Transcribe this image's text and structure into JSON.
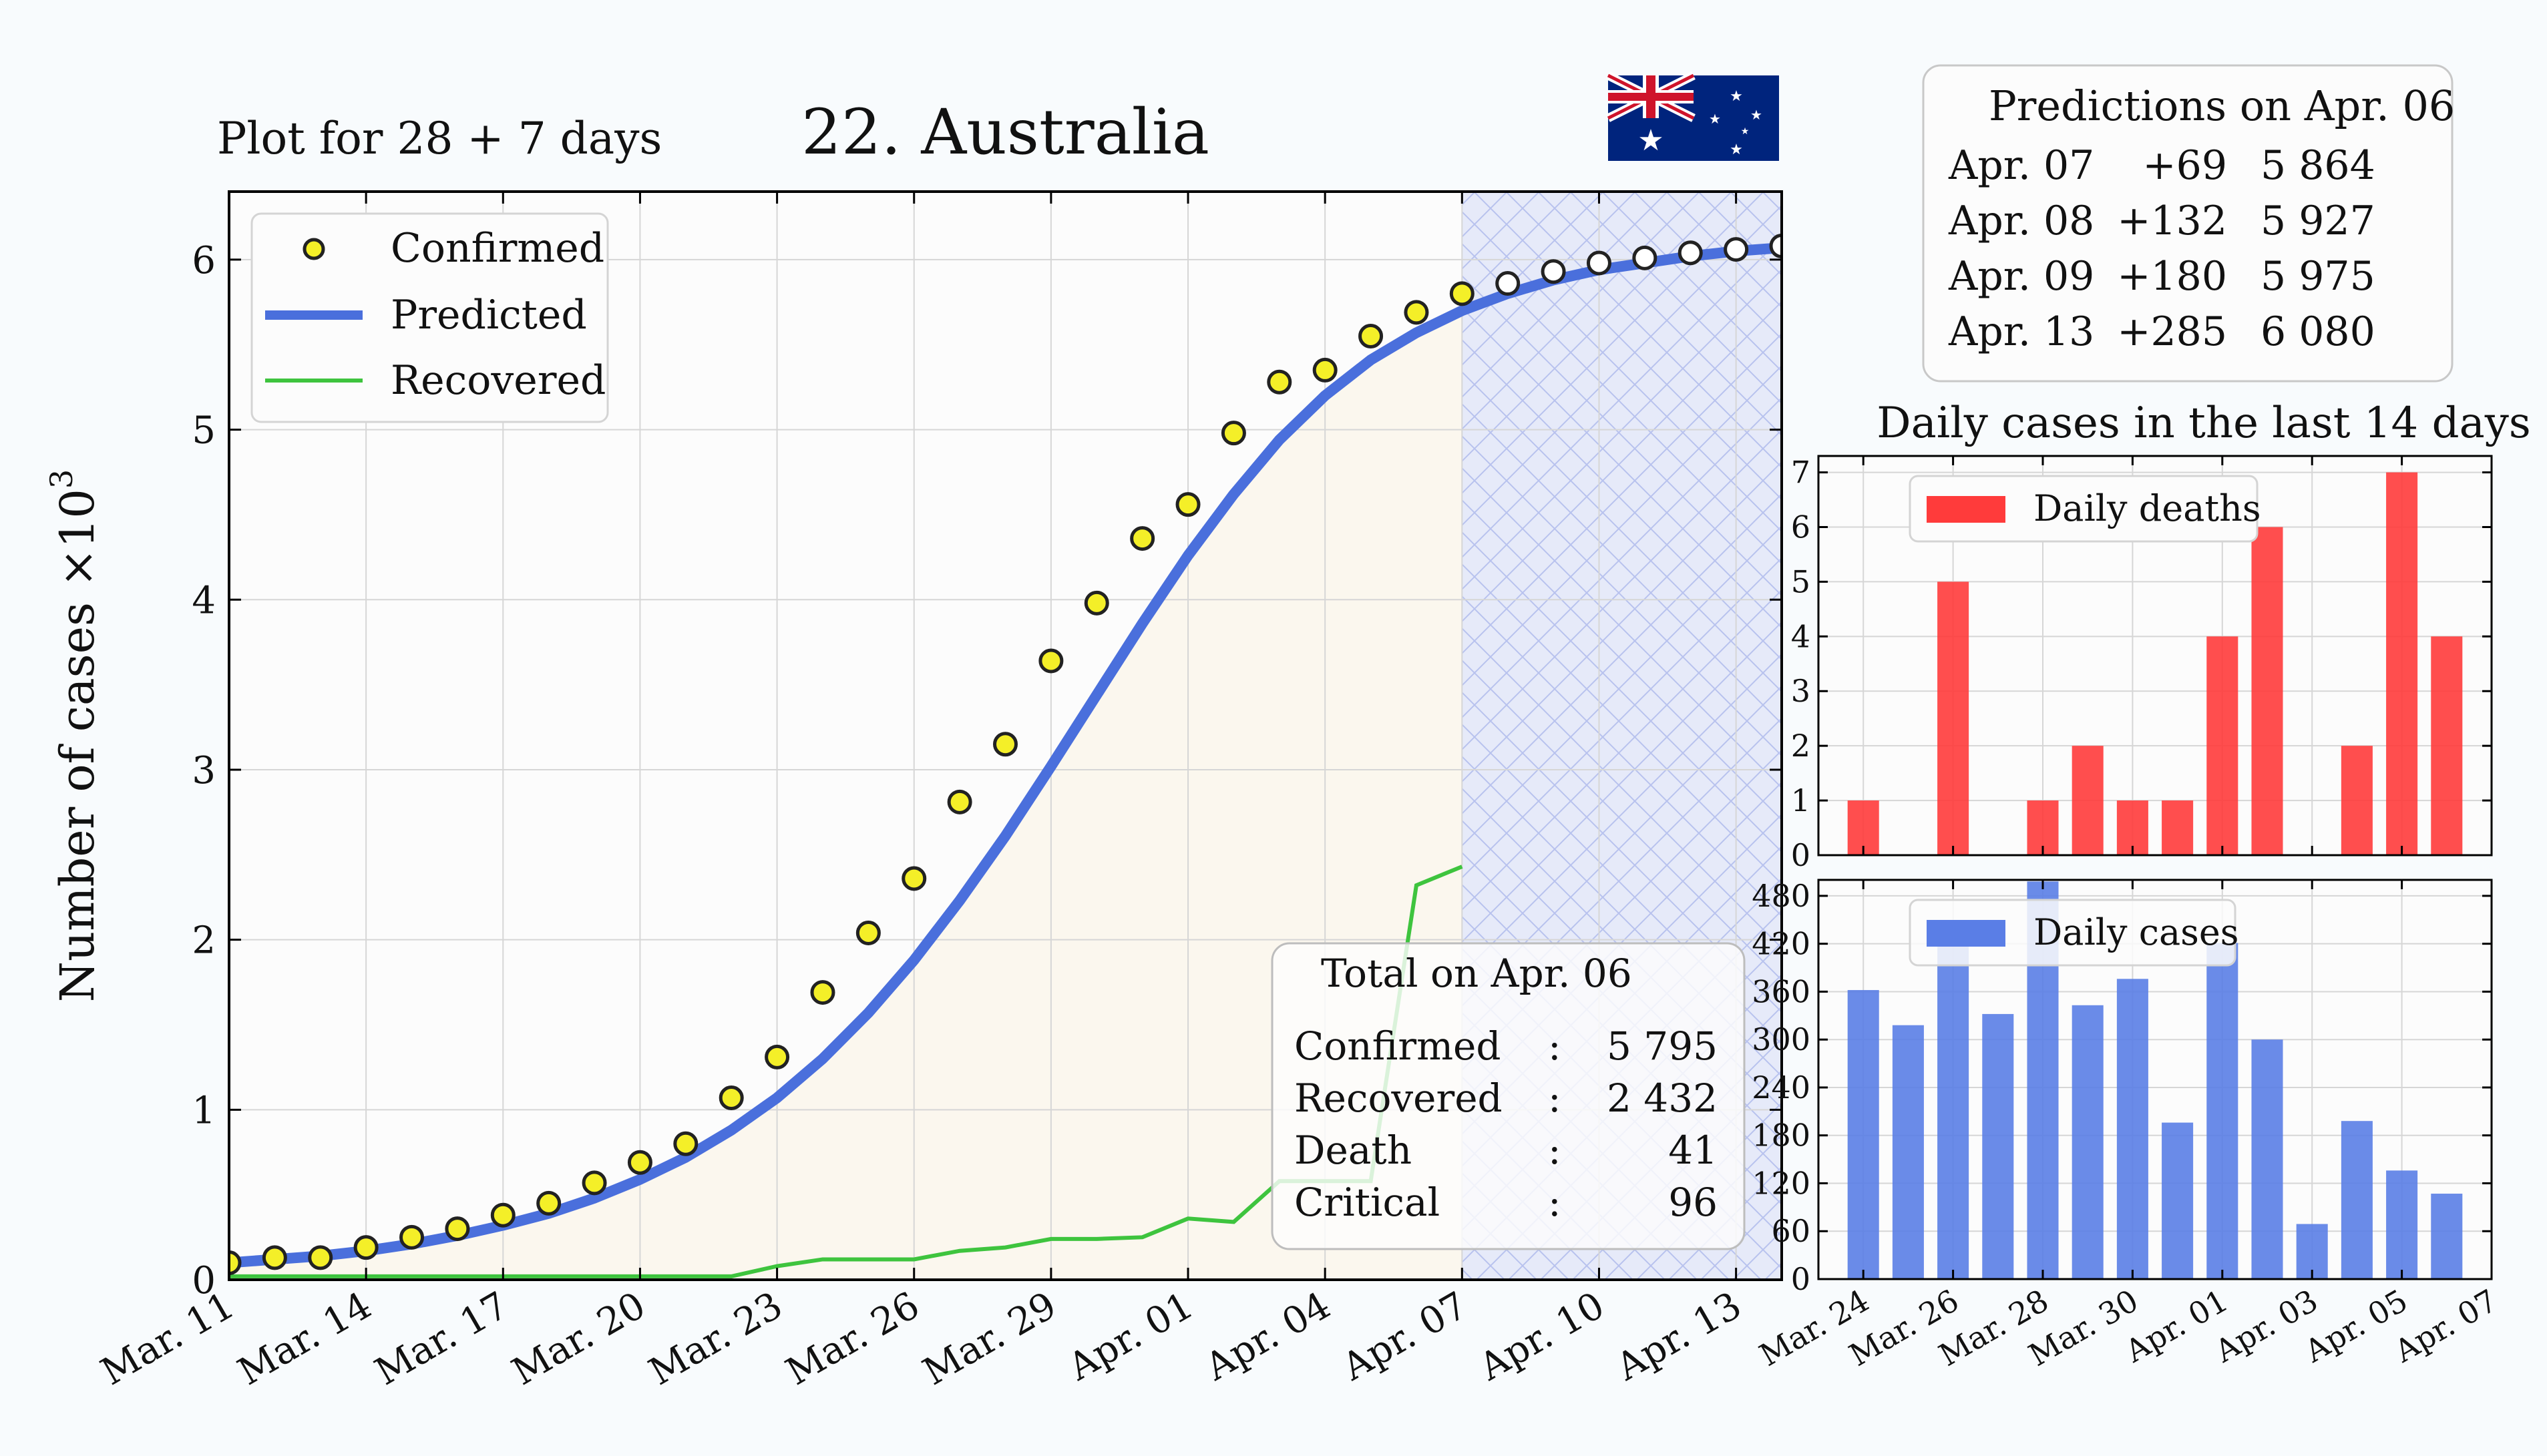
{
  "header": {
    "subtitle": "Plot for 28 + 7 days",
    "title": "22. Australia",
    "flag": "australia-flag"
  },
  "colors": {
    "confirmed_fill": "#f4ef28",
    "predicted": "#4a6fdc",
    "recovered": "#3ec43e",
    "deaths_bar": "#ff3b3b",
    "cases_bar": "#5a7ee6",
    "forecast_band": "#e6eaf9",
    "past_fill": "#fbf7ee"
  },
  "predictions": {
    "title": "Predictions on Apr. 06",
    "rows": [
      {
        "date": "Apr. 07",
        "delta": "+69",
        "total": "5 864"
      },
      {
        "date": "Apr. 08",
        "delta": "+132",
        "total": "5 927"
      },
      {
        "date": "Apr. 09",
        "delta": "+180",
        "total": "5 975"
      },
      {
        "date": "Apr. 13",
        "delta": "+285",
        "total": "6 080"
      }
    ]
  },
  "totals": {
    "title": "Total on Apr. 06",
    "rows": [
      {
        "label": "Confirmed",
        "sep": ":",
        "value": "5 795"
      },
      {
        "label": "Recovered",
        "sep": ":",
        "value": "2 432"
      },
      {
        "label": "Death",
        "sep": ":",
        "value": "41"
      },
      {
        "label": "Critical",
        "sep": ":",
        "value": "96"
      }
    ]
  },
  "chart_data": [
    {
      "type": "line",
      "ylabel": "Number of cases ×10³",
      "ylabel_main": "Number of cases ×10",
      "ylabel_sup": "3",
      "x_start": "Mar. 11",
      "ylim": [
        0,
        6.4
      ],
      "yticks": [
        "0",
        "1",
        "2",
        "3",
        "4",
        "5",
        "6"
      ],
      "xtick_labels": [
        "Mar. 11",
        "Mar. 14",
        "Mar. 17",
        "Mar. 20",
        "Mar. 23",
        "Mar. 26",
        "Mar. 29",
        "Apr. 01",
        "Apr. 04",
        "Apr. 07",
        "Apr. 10",
        "Apr. 13"
      ],
      "legend_position": "top-left",
      "forecast_start": "Apr. 06",
      "series": [
        {
          "name": "Confirmed",
          "kind": "markers",
          "values": [
            0.1,
            0.13,
            0.13,
            0.19,
            0.25,
            0.3,
            0.38,
            0.45,
            0.57,
            0.69,
            0.8,
            1.07,
            1.31,
            1.69,
            2.04,
            2.36,
            2.81,
            3.15,
            3.64,
            3.98,
            4.36,
            4.56,
            4.98,
            5.28,
            5.35,
            5.55,
            5.69,
            5.8
          ],
          "forecast_values": [
            5.86,
            5.93,
            5.98,
            6.01,
            6.04,
            6.06,
            6.08
          ]
        },
        {
          "name": "Predicted",
          "kind": "line",
          "values": [
            0.1,
            0.12,
            0.14,
            0.17,
            0.21,
            0.26,
            0.32,
            0.39,
            0.48,
            0.59,
            0.72,
            0.88,
            1.07,
            1.3,
            1.57,
            1.88,
            2.23,
            2.61,
            3.02,
            3.44,
            3.86,
            4.26,
            4.62,
            4.94,
            5.2,
            5.41,
            5.57,
            5.7,
            5.8,
            5.88,
            5.94,
            5.98,
            6.02,
            6.05,
            6.07,
            6.09
          ]
        },
        {
          "name": "Recovered",
          "kind": "line",
          "values": [
            0.02,
            0.02,
            0.02,
            0.02,
            0.02,
            0.02,
            0.02,
            0.02,
            0.02,
            0.02,
            0.02,
            0.02,
            0.08,
            0.12,
            0.12,
            0.12,
            0.17,
            0.19,
            0.24,
            0.24,
            0.25,
            0.36,
            0.34,
            0.58,
            0.58,
            0.58,
            2.32,
            2.43
          ]
        }
      ]
    },
    {
      "type": "bar",
      "title": "Daily cases in the last 14 days",
      "categories": [
        "Mar. 24",
        "Mar. 25",
        "Mar. 26",
        "Mar. 27",
        "Mar. 28",
        "Mar. 29",
        "Mar. 30",
        "Mar. 31",
        "Apr. 01",
        "Apr. 02",
        "Apr. 03",
        "Apr. 04",
        "Apr. 05",
        "Apr. 06"
      ],
      "xtick_labels": [
        "Mar. 24",
        "Mar. 26",
        "Mar. 28",
        "Mar. 30",
        "Apr. 01",
        "Apr. 03",
        "Apr. 05",
        "Apr. 07"
      ],
      "series": [
        {
          "name": "Daily deaths",
          "values": [
            1,
            0,
            5,
            0,
            1,
            2,
            1,
            1,
            4,
            6,
            0,
            2,
            7,
            4
          ]
        }
      ],
      "ylim": [
        0,
        7.3
      ],
      "yticks": [
        "0",
        "1",
        "2",
        "3",
        "4",
        "5",
        "6",
        "7"
      ],
      "legend_position": "top-left"
    },
    {
      "type": "bar",
      "categories": [
        "Mar. 24",
        "Mar. 25",
        "Mar. 26",
        "Mar. 27",
        "Mar. 28",
        "Mar. 29",
        "Mar. 30",
        "Mar. 31",
        "Apr. 01",
        "Apr. 02",
        "Apr. 03",
        "Apr. 04",
        "Apr. 05",
        "Apr. 06"
      ],
      "xtick_labels": [
        "Mar. 24",
        "Mar. 26",
        "Mar. 28",
        "Mar. 30",
        "Apr. 01",
        "Apr. 03",
        "Apr. 05",
        "Apr. 07"
      ],
      "series": [
        {
          "name": "Daily cases",
          "values": [
            362,
            318,
            445,
            332,
            498,
            343,
            376,
            196,
            421,
            300,
            69,
            198,
            136,
            107
          ]
        }
      ],
      "ylim": [
        0,
        500
      ],
      "yticks": [
        "0",
        "60",
        "120",
        "180",
        "240",
        "300",
        "360",
        "420",
        "480"
      ],
      "legend_position": "top-left"
    }
  ]
}
